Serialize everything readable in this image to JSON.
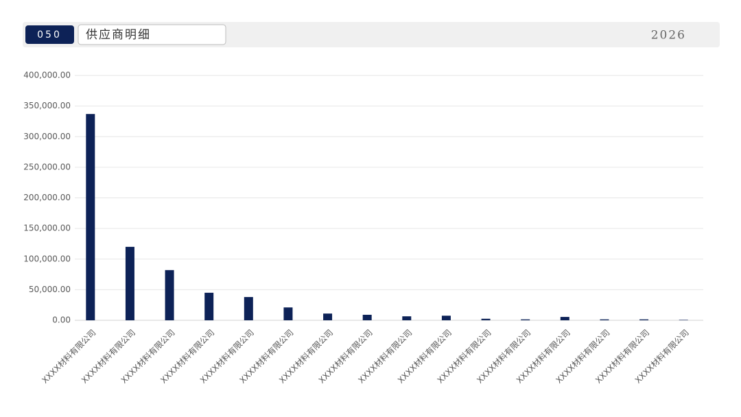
{
  "header": {
    "number": "050",
    "title": "供应商明细",
    "year": "2026"
  },
  "chart_data": {
    "type": "bar",
    "categories": [
      "XXXX材料有限公司",
      "XXXX材料有限公司",
      "XXXX材料有限公司",
      "XXXX材料有限公司",
      "XXXX材料有限公司",
      "XXXX材料有限公司",
      "XXXX材料有限公司",
      "XXXX材料有限公司",
      "XXXX材料有限公司",
      "XXXX材料有限公司",
      "XXXX材料有限公司",
      "XXXX材料有限公司",
      "XXXX材料有限公司",
      "XXXX材料有限公司",
      "XXXX材料有限公司",
      "XXXX材料有限公司"
    ],
    "values": [
      337000,
      120000,
      82000,
      45000,
      38000,
      21000,
      11000,
      9000,
      6500,
      7500,
      2500,
      1500,
      5500,
      1500,
      1500,
      700
    ],
    "color": "#0d2257",
    "ylim": [
      0,
      400000
    ],
    "yticks": [
      {
        "value": 0,
        "label": "0.00"
      },
      {
        "value": 50000,
        "label": "50,000.00"
      },
      {
        "value": 100000,
        "label": "100,000.00"
      },
      {
        "value": 150000,
        "label": "150,000.00"
      },
      {
        "value": 200000,
        "label": "200,000.00"
      },
      {
        "value": 250000,
        "label": "250,000.00"
      },
      {
        "value": 300000,
        "label": "300,000.00"
      },
      {
        "value": 350000,
        "label": "350,000.00"
      },
      {
        "value": 400000,
        "label": "400,000.00"
      }
    ],
    "grid": true
  }
}
